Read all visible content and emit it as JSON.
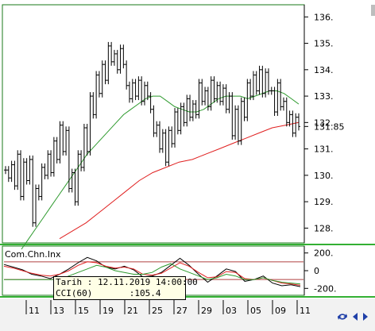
{
  "chart_data": [
    {
      "type": "line",
      "title": "",
      "xlabel": "",
      "ylabel": "",
      "x_tick_labels": [
        "11",
        "13",
        "15",
        "19",
        "21",
        "25",
        "27",
        "29",
        "03",
        "05",
        "09",
        "11"
      ],
      "y_tick_labels": [
        "136.",
        "135.",
        "134.",
        "133.",
        "132.",
        "131.85",
        "131.",
        "130.",
        "129.",
        "128."
      ],
      "ylim": [
        127.5,
        136.4
      ],
      "last_value_label": "131.85",
      "grid": false,
      "series": [
        {
          "role": "price",
          "color": "#000000",
          "values": [
            130.2,
            129.9,
            130.4,
            129.6,
            130.8,
            129.2,
            130.5,
            129.8,
            130.6,
            128.2,
            129.5,
            129.2,
            130.3,
            130.0,
            130.8,
            130.1,
            131.3,
            130.6,
            131.9,
            130.9,
            131.7,
            129.5,
            130.1,
            129.0,
            130.8,
            130.3,
            131.8,
            130.9,
            133.0,
            132.3,
            133.8,
            133.1,
            134.2,
            133.6,
            134.9,
            134.3,
            134.6,
            134.0,
            134.8,
            134.2,
            133.4,
            132.9,
            133.5,
            133.0,
            133.6,
            132.8,
            133.4,
            133.0,
            132.5,
            131.6,
            131.9,
            131.0,
            131.6,
            130.5,
            131.7,
            131.2,
            132.4,
            131.7,
            132.6,
            132.0,
            132.9,
            132.2,
            132.7,
            132.3,
            133.5,
            132.8,
            133.2,
            132.6,
            133.6,
            132.9,
            133.4,
            132.8,
            133.3,
            132.5,
            133.0,
            131.5,
            132.5,
            131.3,
            132.8,
            132.2,
            133.5,
            133.0,
            133.8,
            133.2,
            134.0,
            133.1,
            133.9,
            133.2,
            133.2,
            132.4,
            133.5,
            132.6,
            132.8,
            132.0,
            132.3,
            131.6,
            132.2,
            131.85
          ],
          "ohlc_markers": true
        },
        {
          "role": "moving-average",
          "color": "#2e9a2e",
          "values": [
            127.2,
            127.6,
            128.0,
            128.4,
            128.8,
            129.2,
            129.6,
            130.0,
            130.4,
            130.8,
            131.1,
            131.4,
            131.7,
            132.0,
            132.3,
            132.5,
            132.7,
            132.9,
            133.0,
            133.0,
            132.8,
            132.6,
            132.5,
            132.4,
            132.4,
            132.5,
            132.7,
            132.9,
            133.0,
            133.0,
            133.0,
            132.9,
            133.0,
            133.1,
            133.2,
            133.2,
            133.1,
            132.9,
            132.7
          ]
        },
        {
          "role": "moving-average",
          "color": "#e02020",
          "values": [
            127.6,
            127.9,
            128.2,
            128.6,
            129.0,
            129.4,
            129.8,
            130.1,
            130.3,
            130.5,
            130.6,
            130.8,
            131.0,
            131.2,
            131.4,
            131.6,
            131.8,
            131.9,
            132.0
          ]
        }
      ]
    },
    {
      "type": "line",
      "title": "Com.Chn.Inx",
      "y_tick_labels": [
        "200.",
        "0",
        "-200."
      ],
      "ylim": [
        -260,
        260
      ],
      "reference_lines": [
        100,
        -100
      ],
      "series": [
        {
          "role": "cci",
          "color": "#000000",
          "values": [
            70,
            40,
            10,
            -40,
            -60,
            -90,
            -40,
            20,
            90,
            150,
            110,
            40,
            20,
            50,
            10,
            -70,
            -60,
            -20,
            60,
            140,
            60,
            -40,
            -130,
            -60,
            20,
            -10,
            -120,
            -100,
            -60,
            -140,
            -170,
            -160,
            -180
          ]
        },
        {
          "role": "signal",
          "color": "#e02020",
          "values": [
            50,
            30,
            0,
            -30,
            -50,
            -60,
            -40,
            0,
            60,
            100,
            90,
            50,
            30,
            40,
            20,
            -40,
            -50,
            -30,
            30,
            90,
            50,
            -20,
            -80,
            -70,
            -10,
            -20,
            -90,
            -100,
            -80,
            -110,
            -140,
            -150,
            -165
          ]
        },
        {
          "role": "reference",
          "color": "#2e9a2e",
          "values": [
            -100,
            -100,
            -100,
            -100,
            -100,
            -100,
            -100,
            -60,
            -20,
            20,
            60,
            40,
            0,
            -20,
            -40,
            -40,
            -20,
            40,
            80,
            20,
            -20,
            -60,
            -100,
            -80,
            -40,
            -60,
            -100,
            -100,
            -80,
            -110,
            -130,
            -140,
            -150
          ]
        }
      ],
      "tooltip": {
        "date_line": "Tarih : 12.11.2019 14:00:00",
        "value_line": "CCI(60)       :105.4"
      }
    }
  ]
}
